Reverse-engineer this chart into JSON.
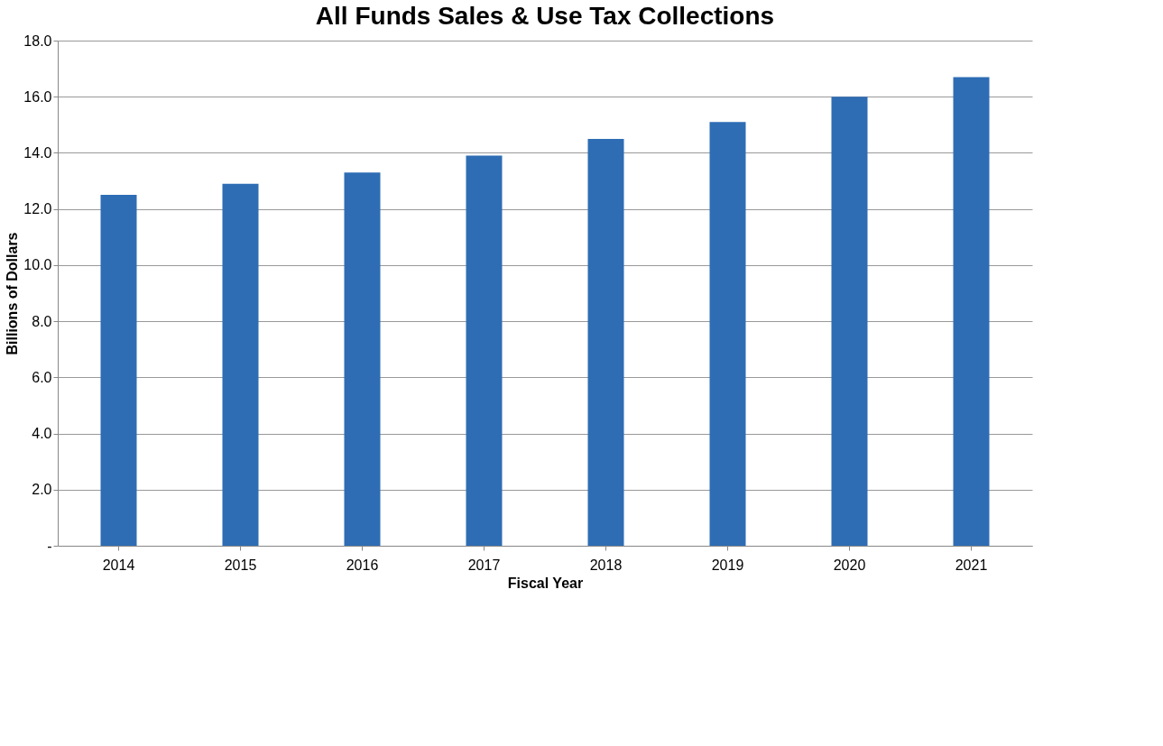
{
  "chart_data": {
    "type": "bar",
    "title": "All Funds Sales & Use Tax Collections",
    "xlabel": "Fiscal Year",
    "ylabel": "Billions of Dollars",
    "categories": [
      "2014",
      "2015",
      "2016",
      "2017",
      "2018",
      "2019",
      "2020",
      "2021"
    ],
    "series": [
      {
        "color": "#2e6db4",
        "values": [
          12.5,
          12.9,
          13.3,
          13.9,
          14.5,
          15.1,
          16.0,
          16.7
        ]
      }
    ],
    "ylim": [
      0,
      18
    ],
    "yticks": [
      {
        "value": 0,
        "label": "-"
      },
      {
        "value": 2,
        "label": "2.0"
      },
      {
        "value": 4,
        "label": "4.0"
      },
      {
        "value": 6,
        "label": "6.0"
      },
      {
        "value": 8,
        "label": "8.0"
      },
      {
        "value": 10,
        "label": "10.0"
      },
      {
        "value": 12,
        "label": "12.0"
      },
      {
        "value": 14,
        "label": "14.0"
      },
      {
        "value": 16,
        "label": "16.0"
      },
      {
        "value": 18,
        "label": "18.0"
      }
    ],
    "grid": "y"
  }
}
